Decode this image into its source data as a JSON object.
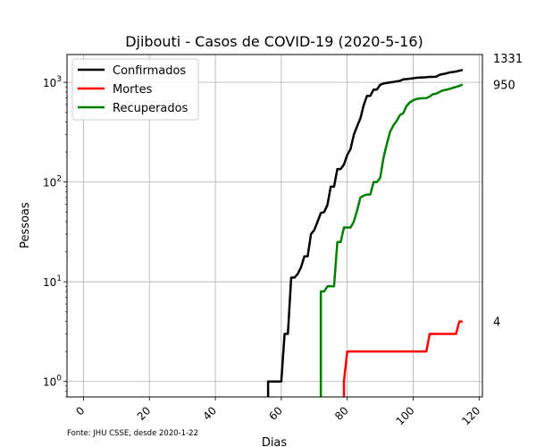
{
  "chart_data": {
    "type": "line",
    "title": "Djibouti - Casos de COVID-19 (2020-5-16)",
    "xlabel": "Dias",
    "ylabel": "Pessoas",
    "source_note": "Fonte: JHU CSSE, desde 2020-1-22",
    "xlim": [
      -5,
      121
    ],
    "ylim": [
      0.7,
      1900
    ],
    "yscale": "log",
    "grid": true,
    "legend_position": "top-left",
    "x_ticks": [
      0,
      20,
      40,
      60,
      80,
      100,
      120
    ],
    "y_ticks": [
      {
        "value": 1,
        "label": "10⁰",
        "base": "10",
        "exp": "0"
      },
      {
        "value": 10,
        "label": "10¹",
        "base": "10",
        "exp": "1"
      },
      {
        "value": 100,
        "label": "10²",
        "base": "10",
        "exp": "2"
      },
      {
        "value": 1000,
        "label": "10³",
        "base": "10",
        "exp": "3"
      }
    ],
    "end_labels": [
      {
        "series": "Confirmados",
        "text": "1331"
      },
      {
        "series": "Recuperados",
        "text": "950"
      },
      {
        "series": "Mortes",
        "text": "4"
      }
    ],
    "series": [
      {
        "name": "Confirmados",
        "color": "#000000",
        "points": [
          [
            56,
            0.7
          ],
          [
            56,
            1
          ],
          [
            60,
            1
          ],
          [
            61,
            3
          ],
          [
            62,
            3
          ],
          [
            63,
            11
          ],
          [
            64,
            11
          ],
          [
            65,
            12
          ],
          [
            66,
            14
          ],
          [
            67,
            18
          ],
          [
            68,
            18
          ],
          [
            69,
            30
          ],
          [
            70,
            33
          ],
          [
            71,
            40
          ],
          [
            72,
            49
          ],
          [
            73,
            50
          ],
          [
            74,
            59
          ],
          [
            75,
            90
          ],
          [
            76,
            90
          ],
          [
            77,
            135
          ],
          [
            78,
            135
          ],
          [
            79,
            150
          ],
          [
            80,
            187
          ],
          [
            81,
            214
          ],
          [
            82,
            298
          ],
          [
            83,
            363
          ],
          [
            84,
            435
          ],
          [
            85,
            591
          ],
          [
            86,
            732
          ],
          [
            87,
            732
          ],
          [
            88,
            846
          ],
          [
            89,
            846
          ],
          [
            90,
            945
          ],
          [
            91,
            974
          ],
          [
            92,
            986
          ],
          [
            93,
            999
          ],
          [
            94,
            1008
          ],
          [
            95,
            1023
          ],
          [
            96,
            1035
          ],
          [
            97,
            1072
          ],
          [
            98,
            1077
          ],
          [
            99,
            1089
          ],
          [
            100,
            1097
          ],
          [
            101,
            1112
          ],
          [
            102,
            1116
          ],
          [
            103,
            1120
          ],
          [
            104,
            1124
          ],
          [
            105,
            1133
          ],
          [
            106,
            1135
          ],
          [
            107,
            1140
          ],
          [
            108,
            1189
          ],
          [
            109,
            1210
          ],
          [
            110,
            1227
          ],
          [
            111,
            1256
          ],
          [
            112,
            1268
          ],
          [
            113,
            1284
          ],
          [
            114,
            1309
          ],
          [
            115,
            1331
          ]
        ]
      },
      {
        "name": "Mortes",
        "color": "#ff0000",
        "points": [
          [
            79,
            0.7
          ],
          [
            79,
            1
          ],
          [
            80,
            2
          ],
          [
            104,
            2
          ],
          [
            105,
            3
          ],
          [
            113,
            3
          ],
          [
            114,
            4
          ],
          [
            115,
            4
          ]
        ]
      },
      {
        "name": "Recuperados",
        "color": "#008000",
        "points": [
          [
            72,
            0.7
          ],
          [
            72,
            8
          ],
          [
            73,
            8
          ],
          [
            74,
            9
          ],
          [
            75,
            9
          ],
          [
            76,
            9
          ],
          [
            77,
            25
          ],
          [
            78,
            25
          ],
          [
            79,
            35
          ],
          [
            80,
            35
          ],
          [
            81,
            35
          ],
          [
            82,
            40
          ],
          [
            83,
            52
          ],
          [
            84,
            70
          ],
          [
            85,
            73
          ],
          [
            86,
            75
          ],
          [
            87,
            75
          ],
          [
            88,
            100
          ],
          [
            89,
            100
          ],
          [
            90,
            110
          ],
          [
            91,
            175
          ],
          [
            92,
            240
          ],
          [
            93,
            320
          ],
          [
            94,
            370
          ],
          [
            95,
            410
          ],
          [
            96,
            470
          ],
          [
            97,
            490
          ],
          [
            98,
            580
          ],
          [
            99,
            630
          ],
          [
            100,
            660
          ],
          [
            101,
            680
          ],
          [
            102,
            690
          ],
          [
            103,
            692
          ],
          [
            104,
            695
          ],
          [
            105,
            720
          ],
          [
            106,
            760
          ],
          [
            107,
            770
          ],
          [
            108,
            800
          ],
          [
            109,
            830
          ],
          [
            110,
            840
          ],
          [
            111,
            860
          ],
          [
            112,
            880
          ],
          [
            113,
            900
          ],
          [
            114,
            920
          ],
          [
            115,
            950
          ]
        ]
      }
    ]
  }
}
